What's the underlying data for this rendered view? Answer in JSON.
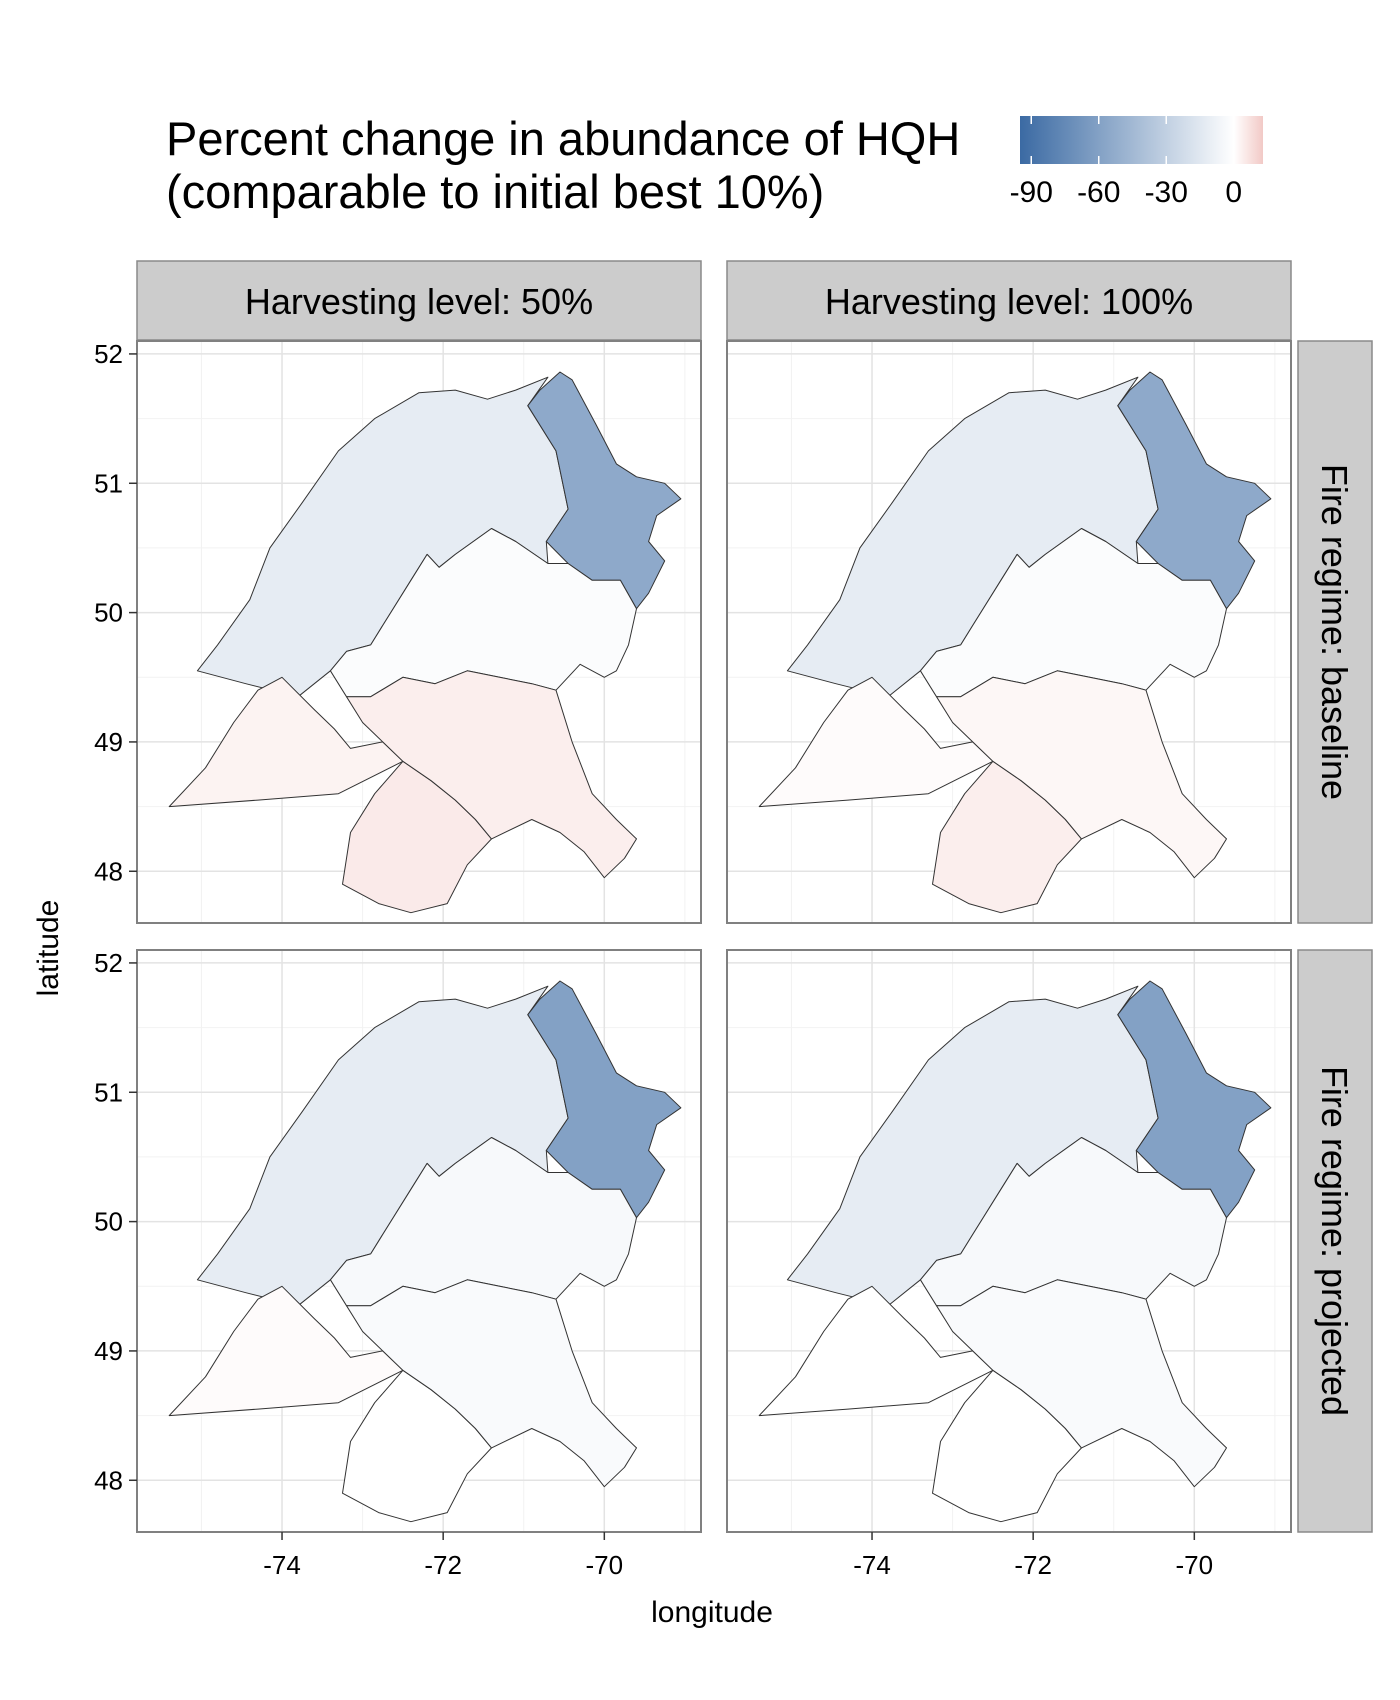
{
  "legend": {
    "title_line1": "Percent change in abundance of HQH",
    "title_line2": "(comparable to initial best 10%)",
    "breaks": [
      "-90",
      "-60",
      "-30",
      "0"
    ],
    "range": [
      -95,
      13
    ],
    "break_values": [
      -90,
      -60,
      -30,
      0
    ],
    "colors": {
      "low": "#3b6aa3",
      "mid": "#ffffff",
      "high": "#f2c9c6"
    }
  },
  "axes": {
    "xlabel": "longitude",
    "ylabel": "latitude",
    "x_ticks": [
      "-74",
      "-72",
      "-70"
    ],
    "y_ticks": [
      "52",
      "51",
      "50",
      "49",
      "48"
    ],
    "x_tick_values": [
      -74,
      -72,
      -70
    ],
    "y_tick_values": [
      52,
      51,
      50,
      49,
      48
    ],
    "xlim": [
      -75.8,
      -68.8
    ],
    "ylim": [
      47.6,
      52.1
    ],
    "grid": true
  },
  "facets": {
    "columns": [
      "Harvesting level: 50%",
      "Harvesting level: 100%"
    ],
    "rows": [
      "Fire regime: baseline",
      "Fire regime: projected"
    ]
  },
  "chart_data": {
    "type": "map",
    "zones": [
      "north-west",
      "north-east",
      "centre",
      "south-west",
      "south-centre",
      "south-east"
    ],
    "panels": [
      {
        "harvest": "Harvesting level: 50%",
        "fire": "Fire regime: baseline",
        "values": {
          "north-west": -12,
          "north-east": -55,
          "centre": -2,
          "south-west": 3,
          "south-centre": 5,
          "south-east": 4
        }
      },
      {
        "harvest": "Harvesting level: 100%",
        "fire": "Fire regime: baseline",
        "values": {
          "north-west": -12,
          "north-east": -55,
          "centre": -2,
          "south-west": 1,
          "south-centre": 4,
          "south-east": 2
        }
      },
      {
        "harvest": "Harvesting level: 50%",
        "fire": "Fire regime: projected",
        "values": {
          "north-west": -12,
          "north-east": -60,
          "centre": -4,
          "south-west": 1,
          "south-centre": 0,
          "south-east": -3
        }
      },
      {
        "harvest": "Harvesting level: 100%",
        "fire": "Fire regime: projected",
        "values": {
          "north-west": -12,
          "north-east": -60,
          "centre": -4,
          "south-west": 0,
          "south-centre": 0,
          "south-east": -3
        }
      }
    ]
  }
}
